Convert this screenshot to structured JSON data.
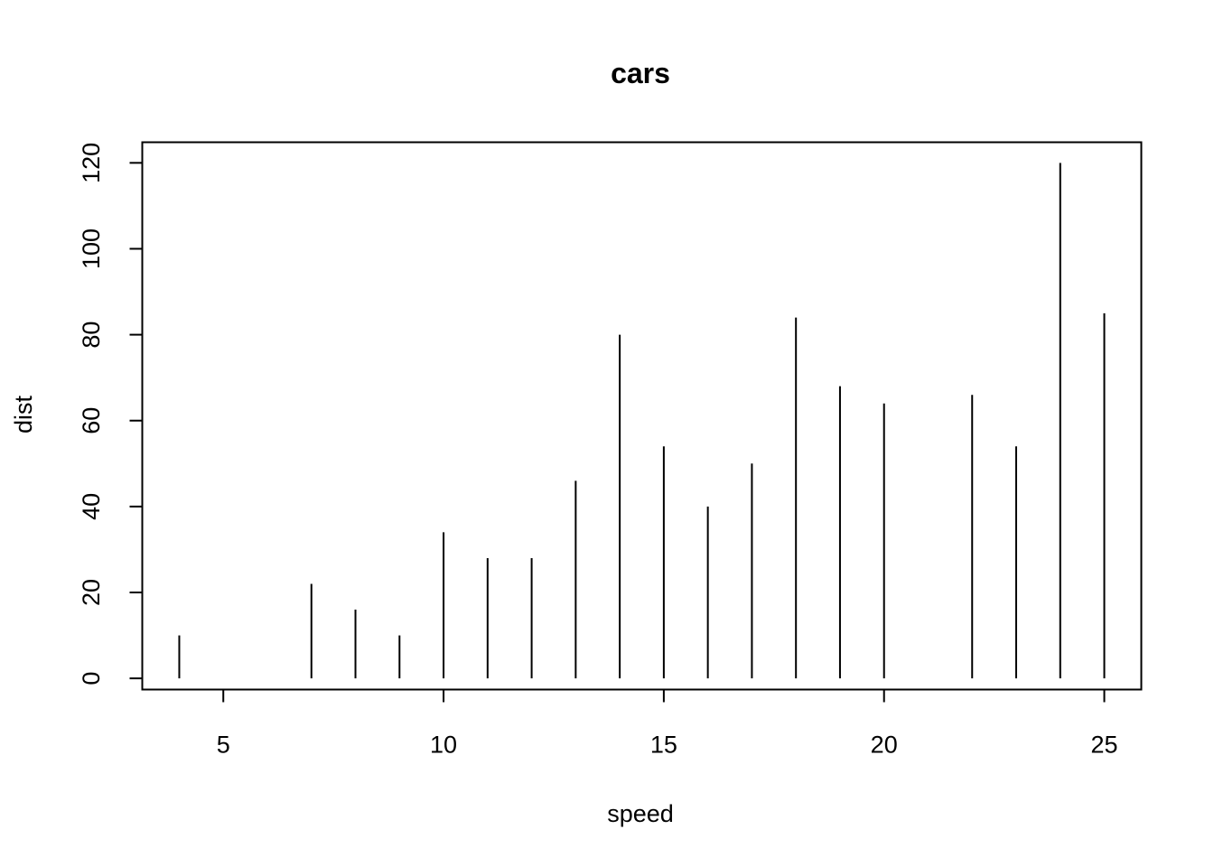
{
  "chart_data": {
    "type": "bar",
    "subtype": "histogram-like vertical lines",
    "title": "cars",
    "xlabel": "speed",
    "ylabel": "dist",
    "x": [
      4,
      7,
      8,
      9,
      10,
      11,
      12,
      13,
      14,
      15,
      16,
      17,
      18,
      19,
      20,
      22,
      23,
      24,
      25
    ],
    "values": [
      10,
      22,
      16,
      10,
      34,
      28,
      28,
      46,
      80,
      54,
      40,
      50,
      84,
      68,
      64,
      66,
      54,
      120,
      85
    ],
    "xlim": [
      3.16,
      25.84
    ],
    "ylim": [
      -2.6,
      124.8
    ],
    "xticks": [
      5,
      10,
      15,
      20,
      25
    ],
    "yticks": [
      0,
      20,
      40,
      60,
      80,
      100,
      120
    ],
    "grid": false,
    "legend": "none",
    "colors": {
      "line": "#000000",
      "background": "#ffffff"
    }
  }
}
